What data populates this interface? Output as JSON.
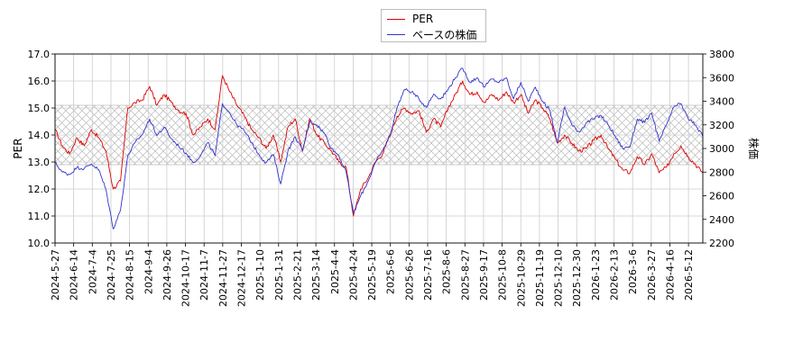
{
  "chart_data": {
    "type": "line",
    "title": "",
    "xlabel": "",
    "ylabel_left": "PER",
    "ylabel_right": "株価",
    "ylim_left": [
      10.0,
      17.0
    ],
    "ylim_right": [
      2200,
      3800
    ],
    "yticks_left": [
      "10.0",
      "11.0",
      "12.0",
      "13.0",
      "14.0",
      "15.0",
      "16.0",
      "17.0"
    ],
    "yticks_right": [
      "2200",
      "2400",
      "2600",
      "2800",
      "3000",
      "3200",
      "3400",
      "3600",
      "3800"
    ],
    "x_tick_labels": [
      "2024-5-27",
      "2024-6-14",
      "2024-7-4",
      "2024-7-25",
      "2024-8-15",
      "2024-9-4",
      "2024-9-26",
      "2024-10-17",
      "2024-11-7",
      "2024-11-27",
      "2024-12-17",
      "2025-1-10",
      "2025-1-31",
      "2025-2-21",
      "2025-3-14",
      "2025-4-4",
      "2025-4-24",
      "2025-5-19",
      "2025-6-6",
      "2025-6-26",
      "2025-7-16",
      "2025-8-6",
      "2025-8-27",
      "2025-9-17",
      "2025-10-8",
      "2025-10-29",
      "2025-11-19",
      "2025-12-10",
      "2025-12-30",
      "2026-1-23",
      "2026-2-13",
      "2026-3-6",
      "2026-3-27",
      "2026-4-16",
      "2026-5-12"
    ],
    "grid": true,
    "legend_position": "top-center",
    "band": {
      "label": "",
      "lower": 12.9,
      "upper": 15.1,
      "style": "cross-hatch"
    },
    "series": [
      {
        "name": "PER",
        "axis": "left",
        "color": "#dd0000",
        "values": [
          14.2,
          13.6,
          13.3,
          13.9,
          13.6,
          14.2,
          13.9,
          13.4,
          12.0,
          12.3,
          15.0,
          15.2,
          15.3,
          15.8,
          15.1,
          15.5,
          15.2,
          14.9,
          14.8,
          14.0,
          14.3,
          14.6,
          14.2,
          16.2,
          15.6,
          15.1,
          14.7,
          14.2,
          13.9,
          13.5,
          14.0,
          13.0,
          14.3,
          14.6,
          13.4,
          14.6,
          14.0,
          13.7,
          13.4,
          13.0,
          12.8,
          11.0,
          12.0,
          12.4,
          13.0,
          13.3,
          14.0,
          14.7,
          15.0,
          14.8,
          14.9,
          14.1,
          14.6,
          14.3,
          15.0,
          15.5,
          16.0,
          15.5,
          15.6,
          15.2,
          15.5,
          15.3,
          15.6,
          15.2,
          15.5,
          14.8,
          15.3,
          15.0,
          14.6,
          13.7,
          14.0,
          13.7,
          13.4,
          13.5,
          13.8,
          14.0,
          13.5,
          13.1,
          12.7,
          12.6,
          13.2,
          12.9,
          13.3,
          12.6,
          12.8,
          13.3,
          13.6,
          13.2,
          12.9,
          12.6
        ]
      },
      {
        "name": "ベースの株価",
        "axis": "right",
        "color": "#3333cc",
        "values": [
          2880,
          2800,
          2780,
          2840,
          2830,
          2870,
          2820,
          2650,
          2320,
          2480,
          2940,
          3050,
          3120,
          3250,
          3110,
          3180,
          3080,
          3020,
          2960,
          2880,
          2940,
          3050,
          2940,
          3380,
          3300,
          3200,
          3150,
          3050,
          2950,
          2880,
          2950,
          2700,
          2980,
          3100,
          2980,
          3230,
          3200,
          3130,
          3000,
          2940,
          2800,
          2450,
          2600,
          2720,
          2880,
          2980,
          3100,
          3350,
          3500,
          3480,
          3420,
          3350,
          3460,
          3420,
          3500,
          3600,
          3680,
          3560,
          3600,
          3520,
          3590,
          3560,
          3600,
          3420,
          3560,
          3400,
          3520,
          3400,
          3320,
          3050,
          3350,
          3200,
          3140,
          3220,
          3250,
          3280,
          3200,
          3100,
          3000,
          3020,
          3250,
          3220,
          3300,
          3060,
          3200,
          3350,
          3380,
          3250,
          3200,
          3100
        ]
      }
    ]
  }
}
